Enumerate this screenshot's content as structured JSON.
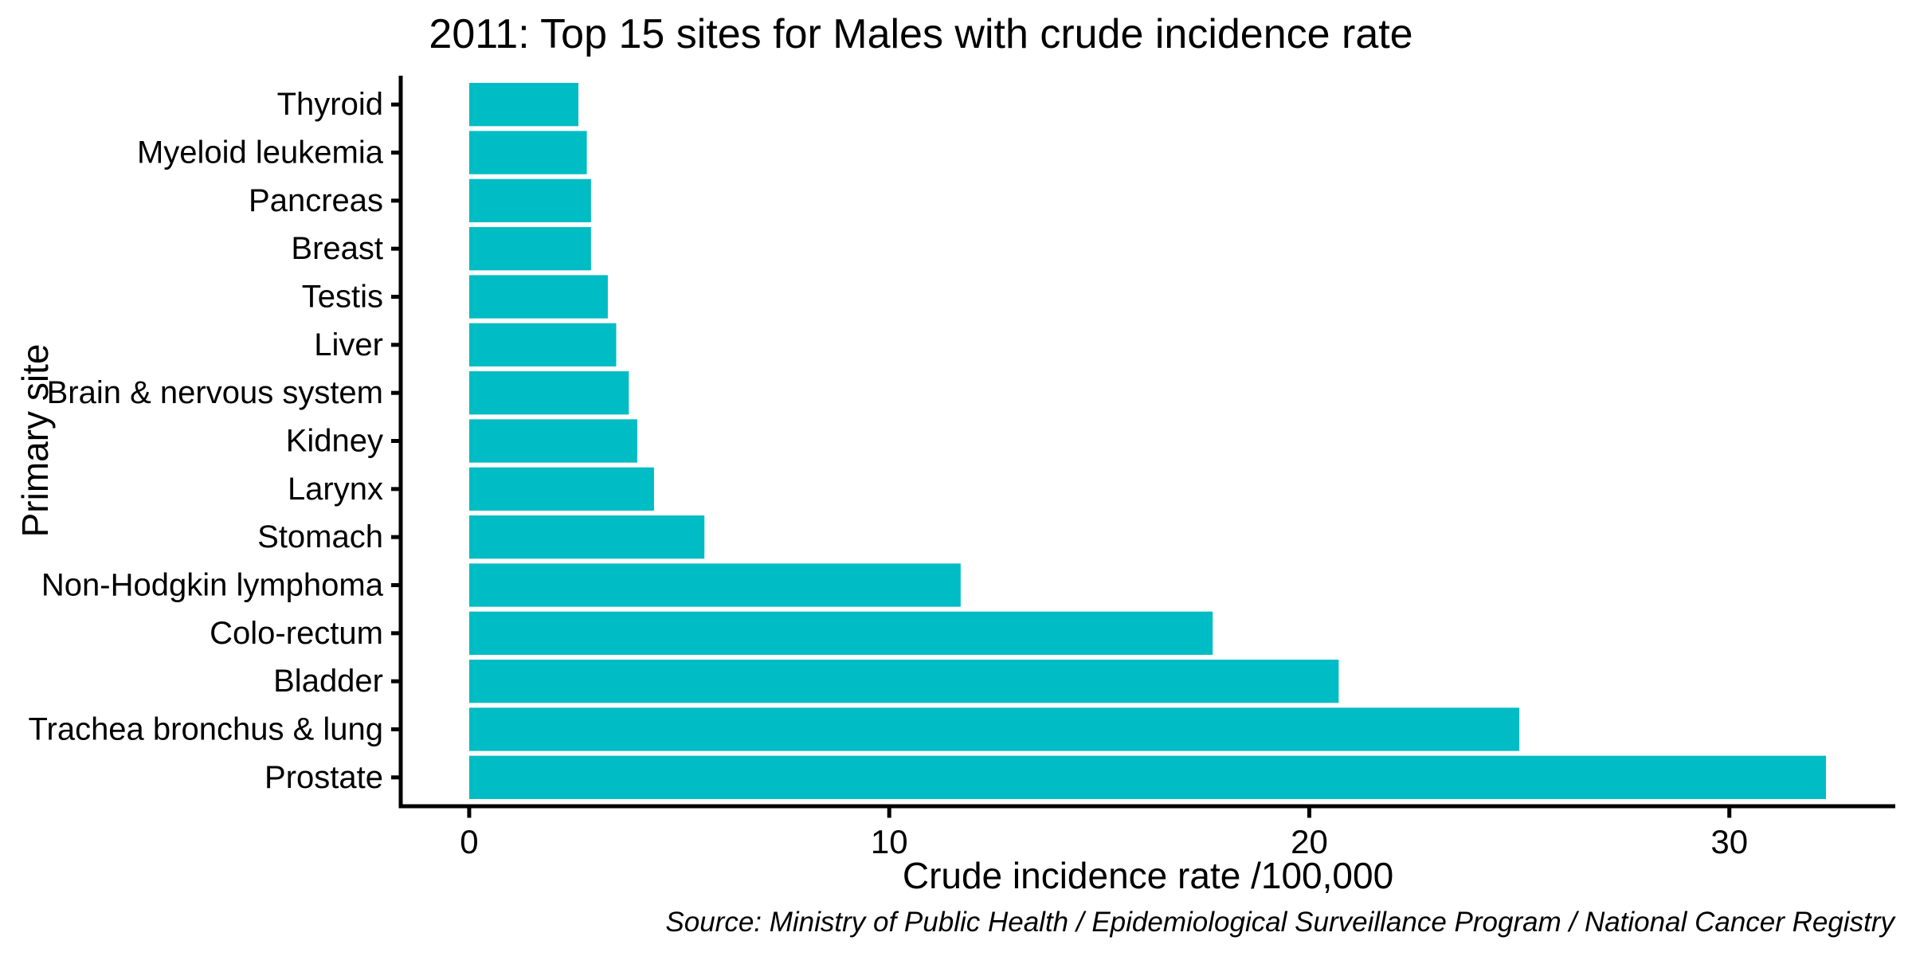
{
  "chart_data": {
    "type": "bar",
    "orientation": "horizontal",
    "title": "2011: Top 15 sites for Males with crude incidence rate",
    "xlabel": "Crude incidence rate /100,000",
    "ylabel": "Primary site",
    "source": "Source: Ministry of Public Health / Epidemiological Surveillance Program / National Cancer Registry",
    "categories": [
      "Thyroid",
      "Myeloid leukemia",
      "Pancreas",
      "Breast",
      "Testis",
      "Liver",
      "Brain & nervous system",
      "Kidney",
      "Larynx",
      "Stomach",
      "Non-Hodgkin lymphoma",
      "Colo-rectum",
      "Bladder",
      "Trachea bronchus & lung",
      "Prostate"
    ],
    "values": [
      2.6,
      2.8,
      2.9,
      2.9,
      3.3,
      3.5,
      3.8,
      4.0,
      4.4,
      5.6,
      11.7,
      17.7,
      20.7,
      25.0,
      32.3
    ],
    "xticks": [
      0,
      10,
      20,
      30
    ],
    "xlim": [
      -1.63,
      33.95
    ],
    "grid": false,
    "legend": false,
    "bar_color": "#00BCC4",
    "axis_color": "#000000",
    "background_color": "#FFFFFF"
  }
}
